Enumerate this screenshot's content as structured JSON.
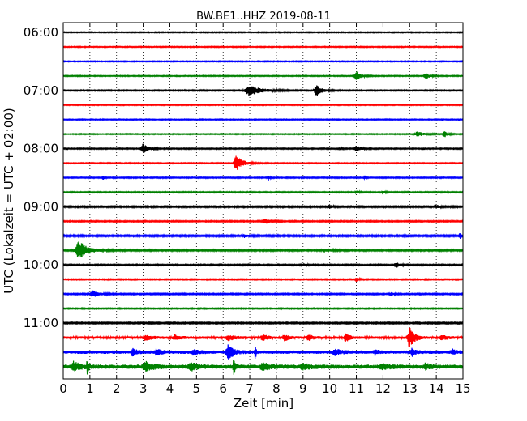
{
  "chart_data": {
    "type": "line",
    "title": "BW.BE1..HHZ 2019-08-11",
    "xlabel": "Zeit  [min]",
    "ylabel": "UTC (Lokalzeit = UTC + 02:00)",
    "xlim": [
      0,
      15
    ],
    "x_ticks": [
      "0",
      "1",
      "2",
      "3",
      "4",
      "5",
      "6",
      "7",
      "8",
      "9",
      "10",
      "11",
      "12",
      "13",
      "14",
      "15"
    ],
    "y_ticks": [
      {
        "row": 0,
        "label": "06:00"
      },
      {
        "row": 4,
        "label": "07:00"
      },
      {
        "row": 8,
        "label": "08:00"
      },
      {
        "row": 12,
        "label": "09:00"
      },
      {
        "row": 16,
        "label": "10:00"
      },
      {
        "row": 20,
        "label": "11:00"
      }
    ],
    "grid_x": true,
    "trace_colors": [
      "#000000",
      "#ff0000",
      "#0000ff",
      "#008000"
    ],
    "traces": [
      {
        "start": "06:00",
        "amp": 0.6,
        "events": []
      },
      {
        "start": "06:15",
        "amp": 0.6,
        "events": []
      },
      {
        "start": "06:30",
        "amp": 0.6,
        "events": []
      },
      {
        "start": "06:45",
        "amp": 0.6,
        "events": [
          {
            "t": 11.0,
            "a": 6,
            "w": 0.35
          },
          {
            "t": 13.6,
            "a": 4,
            "w": 0.3
          }
        ]
      },
      {
        "start": "07:00",
        "amp": 0.7,
        "events": [
          {
            "t": 7.0,
            "a": 6,
            "w": 0.9
          },
          {
            "t": 9.5,
            "a": 7,
            "w": 0.4
          }
        ]
      },
      {
        "start": "07:15",
        "amp": 0.6,
        "events": []
      },
      {
        "start": "07:30",
        "amp": 0.6,
        "events": []
      },
      {
        "start": "07:45",
        "amp": 0.6,
        "events": [
          {
            "t": 13.3,
            "a": 3,
            "w": 0.5
          },
          {
            "t": 14.3,
            "a": 4,
            "w": 0.25
          }
        ]
      },
      {
        "start": "08:00",
        "amp": 0.7,
        "events": [
          {
            "t": 3.0,
            "a": 7,
            "w": 0.4
          },
          {
            "t": 11.0,
            "a": 4,
            "w": 0.3
          },
          {
            "t": 10.4,
            "a": 2,
            "w": 0.1
          }
        ]
      },
      {
        "start": "08:15",
        "amp": 0.6,
        "events": [
          {
            "t": 6.5,
            "a": 9,
            "w": 0.5
          }
        ]
      },
      {
        "start": "08:30",
        "amp": 0.7,
        "events": [
          {
            "t": 1.5,
            "a": 2,
            "w": 0.1
          },
          {
            "t": 7.7,
            "a": 3,
            "w": 0.1
          },
          {
            "t": 11.3,
            "a": 1.5,
            "w": 0.1
          }
        ]
      },
      {
        "start": "08:45",
        "amp": 0.7,
        "events": [
          {
            "t": 11.0,
            "a": 2,
            "w": 0.2
          },
          {
            "t": 12.0,
            "a": 1.5,
            "w": 0.2
          }
        ]
      },
      {
        "start": "09:00",
        "amp": 0.9,
        "events": [
          {
            "t": 10.0,
            "a": 2.5,
            "w": 0.2
          },
          {
            "t": 14.0,
            "a": 2,
            "w": 0.3
          }
        ]
      },
      {
        "start": "09:15",
        "amp": 0.8,
        "events": [
          {
            "t": 7.6,
            "a": 2.5,
            "w": 0.4
          }
        ]
      },
      {
        "start": "09:30",
        "amp": 1.0,
        "events": [
          {
            "t": 6.8,
            "a": 2,
            "w": 0.2
          },
          {
            "t": 14.9,
            "a": 3,
            "w": 0.2
          }
        ]
      },
      {
        "start": "09:45",
        "amp": 0.9,
        "events": [
          {
            "t": 0.6,
            "a": 11,
            "w": 0.7
          },
          {
            "t": 9.8,
            "a": 2,
            "w": 0.4
          }
        ]
      },
      {
        "start": "10:00",
        "amp": 0.8,
        "events": [
          {
            "t": 12.5,
            "a": 3,
            "w": 0.3
          },
          {
            "t": 9.0,
            "a": 1.5,
            "w": 0.3
          }
        ]
      },
      {
        "start": "10:15",
        "amp": 0.7,
        "events": [
          {
            "t": 11.0,
            "a": 2.5,
            "w": 0.15
          }
        ]
      },
      {
        "start": "10:30",
        "amp": 0.8,
        "events": [
          {
            "t": 1.1,
            "a": 4,
            "w": 0.5
          },
          {
            "t": 12.3,
            "a": 2,
            "w": 0.2
          }
        ]
      },
      {
        "start": "10:45",
        "amp": 0.7,
        "events": []
      },
      {
        "start": "11:00",
        "amp": 0.9,
        "events": [
          {
            "t": 3.0,
            "a": 2,
            "w": 0.3
          }
        ]
      },
      {
        "start": "11:15",
        "amp": 1.5,
        "events": [
          {
            "t": 3.1,
            "a": 3,
            "w": 0.5
          },
          {
            "t": 4.2,
            "a": 3,
            "w": 0.4
          },
          {
            "t": 7.5,
            "a": 3,
            "w": 0.4
          },
          {
            "t": 8.3,
            "a": 4,
            "w": 0.3
          },
          {
            "t": 9.2,
            "a": 3,
            "w": 0.4
          },
          {
            "t": 10.6,
            "a": 5,
            "w": 0.3
          },
          {
            "t": 13.0,
            "a": 12,
            "w": 0.4
          },
          {
            "t": 14.2,
            "a": 3,
            "w": 0.4
          },
          {
            "t": 6.2,
            "a": 3,
            "w": 0.5
          }
        ]
      },
      {
        "start": "11:30",
        "amp": 2.0,
        "events": [
          {
            "t": 2.6,
            "a": 4,
            "w": 0.3
          },
          {
            "t": 3.5,
            "a": 4,
            "w": 0.3
          },
          {
            "t": 4.9,
            "a": 3,
            "w": 0.4
          },
          {
            "t": 6.2,
            "a": 9,
            "w": 0.4
          },
          {
            "t": 7.2,
            "a": 8,
            "w": 0.1
          },
          {
            "t": 10.2,
            "a": 3,
            "w": 0.5
          },
          {
            "t": 11.7,
            "a": 3,
            "w": 0.2
          },
          {
            "t": 13.1,
            "a": 4,
            "w": 0.3
          },
          {
            "t": 14.6,
            "a": 3,
            "w": 0.3
          }
        ]
      },
      {
        "start": "11:45",
        "amp": 2.5,
        "events": [
          {
            "t": 0.4,
            "a": 5,
            "w": 0.5
          },
          {
            "t": 0.9,
            "a": 9,
            "w": 0.1
          },
          {
            "t": 3.1,
            "a": 5,
            "w": 0.6
          },
          {
            "t": 4.8,
            "a": 4,
            "w": 0.5
          },
          {
            "t": 6.4,
            "a": 10,
            "w": 0.15
          },
          {
            "t": 7.5,
            "a": 4,
            "w": 0.5
          },
          {
            "t": 9.0,
            "a": 3,
            "w": 0.5
          },
          {
            "t": 12.0,
            "a": 3,
            "w": 0.5
          },
          {
            "t": 13.6,
            "a": 3,
            "w": 0.4
          }
        ]
      }
    ]
  }
}
